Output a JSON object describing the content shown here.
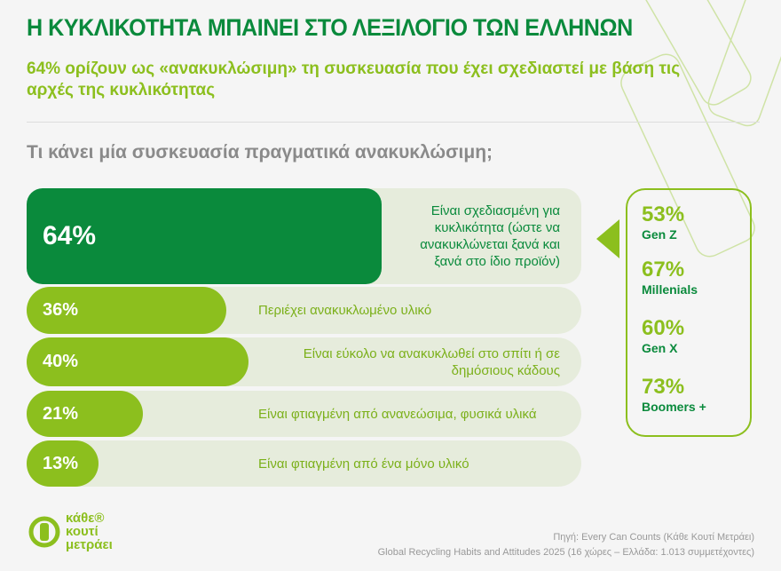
{
  "title": "Η ΚΥΚΛΙΚΟΤΗΤΑ ΜΠΑΙΝΕΙ ΣΤΟ ΛΕΞΙΛΟΓΙΟ ΤΩΝ ΕΛΛΗΝΩΝ",
  "subtitle": "64% ορίζουν ως «ανακυκλώσιμη» τη συσκευασία που έχει σχεδιαστεί με βάση τις αρχές της κυκλικότητας",
  "question": "Τι κάνει μία συσκευασία πραγματικά ανακυκλώσιμη;",
  "colors": {
    "dark_green": "#0a8a3c",
    "lime": "#8cbf1e",
    "track": "#e6ecdc"
  },
  "chart_data": {
    "type": "bar",
    "categories": [
      "Είναι σχεδιασμένη για κυκλικότητα (ώστε να ανακυκλώνεται ξανά και ξανά στο ίδιο προϊόν)",
      "Περιέχει ανακυκλωμένο υλικό",
      "Είναι εύκολο να ανακυκλωθεί στο σπίτι ή σε δημόσιους κάδους",
      "Είναι φτιαγμένη από ανανεώσιμα, φυσικά υλικά",
      "Είναι φτιαγμένη από ένα μόνο υλικό"
    ],
    "values": [
      64,
      36,
      40,
      21,
      13
    ],
    "value_labels": [
      "64%",
      "36%",
      "40%",
      "21%",
      "13%"
    ],
    "xlim": [
      0,
      100
    ]
  },
  "generations": [
    {
      "pct": "53%",
      "name": "Gen Z"
    },
    {
      "pct": "67%",
      "name": "Millenials"
    },
    {
      "pct": "60%",
      "name": "Gen X"
    },
    {
      "pct": "73%",
      "name": "Boomers +"
    }
  ],
  "logo": {
    "line1": "κάθε®",
    "line2": "κουτί",
    "line3": "μετράει"
  },
  "source": {
    "line1": "Πηγή: Every Can Counts (Κάθε Κουτί Μετράει)",
    "line2": "Global Recycling Habits and Attitudes 2025 (16 χώρες – Ελλάδα: 1.013 συμμετέχοντες)"
  }
}
